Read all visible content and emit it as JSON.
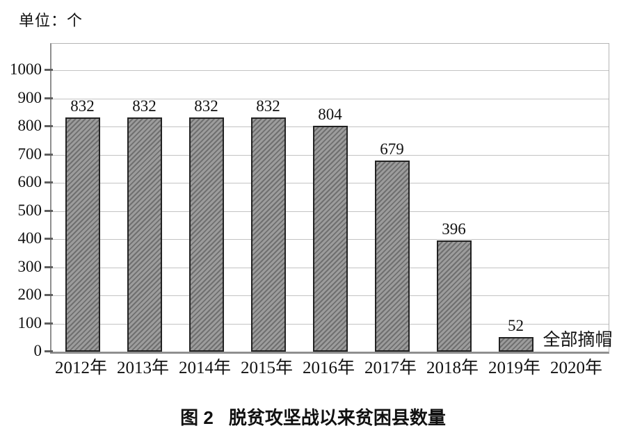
{
  "unit_label": "单位：个",
  "caption": {
    "figure_number": "图 2",
    "title": "脱贫攻坚战以来贫困县数量"
  },
  "chart_data": {
    "type": "bar",
    "title": "图 2 脱贫攻坚战以来贫困县数量",
    "xlabel": "",
    "ylabel": "单位：个",
    "categories": [
      "2012年",
      "2013年",
      "2014年",
      "2015年",
      "2016年",
      "2017年",
      "2018年",
      "2019年",
      "2020年"
    ],
    "values": [
      832,
      832,
      832,
      832,
      804,
      679,
      396,
      52,
      null
    ],
    "bar_labels": [
      "832",
      "832",
      "832",
      "832",
      "804",
      "679",
      "396",
      "52",
      ""
    ],
    "annotation": {
      "text": "全部摘帽",
      "category": "2020年"
    },
    "y_ticks": [
      0,
      100,
      200,
      300,
      400,
      500,
      600,
      700,
      800,
      900,
      1000
    ],
    "ylim": [
      0,
      1095
    ],
    "grid": true,
    "legend": "none",
    "colors": {
      "bar_fill": "#9c9c9c",
      "bar_hatch": "#6f6f6f",
      "bar_border": "#222222",
      "gridline": "#c3c3c3",
      "axis": "#8f8f8f",
      "tick": "#5e5e5e",
      "text": "#111111",
      "background": "#ffffff"
    }
  }
}
